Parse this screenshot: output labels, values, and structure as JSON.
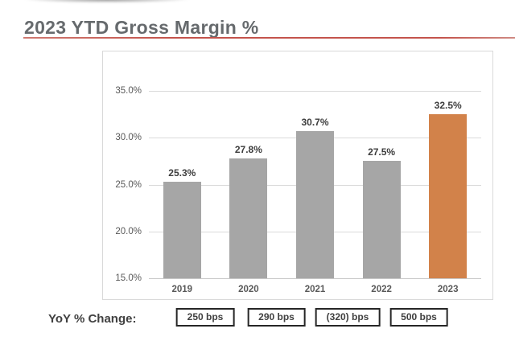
{
  "page": {
    "title": "2023 YTD Gross Margin %"
  },
  "colors": {
    "title_text": "#666a6d",
    "accent_line_red": "#c4544c",
    "grid": "#dadada",
    "axis_text": "#595959",
    "value_text": "#3d3d3d",
    "bar_gray": "#a6a6a6",
    "bar_highlight_orange": "#d2824a",
    "box_border": "#262626"
  },
  "chart_data": {
    "type": "bar",
    "title": "2023 YTD Gross Margin %",
    "categories": [
      "2019",
      "2020",
      "2021",
      "2022",
      "2023"
    ],
    "values": [
      25.3,
      27.8,
      30.7,
      27.5,
      32.5
    ],
    "value_labels": [
      "25.3%",
      "27.8%",
      "30.7%",
      "27.5%",
      "32.5%"
    ],
    "bar_colors": [
      "#a6a6a6",
      "#a6a6a6",
      "#a6a6a6",
      "#a6a6a6",
      "#d2824a"
    ],
    "xlabel": "",
    "ylabel": "",
    "ylim": [
      15,
      35
    ],
    "ytick_values": [
      35,
      30,
      25,
      20,
      15
    ],
    "ytick_labels": [
      "35.0%",
      "30.0%",
      "25.0%",
      "20.0%",
      "15.0%"
    ],
    "grid": true,
    "legend": null,
    "yoy_row": {
      "label": "YoY % Change:",
      "boxes": [
        "250 bps",
        "290 bps",
        "(320) bps",
        "500 bps"
      ]
    }
  }
}
